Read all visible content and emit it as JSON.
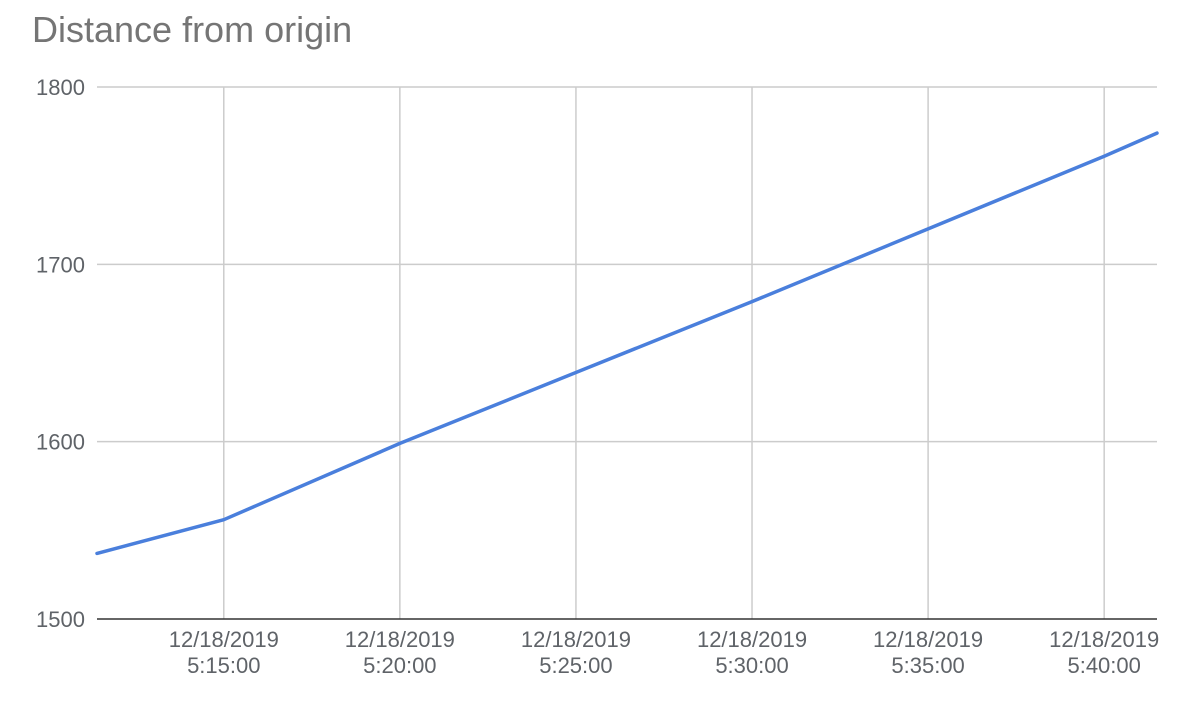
{
  "chart_data": {
    "type": "line",
    "title": "Distance from origin",
    "xlabel": "",
    "ylabel": "",
    "ylim": [
      1500,
      1800
    ],
    "xlim": [
      "12/18/2019 5:11:24",
      "12/18/2019 5:41:30"
    ],
    "y_ticks": [
      1500,
      1600,
      1700,
      1800
    ],
    "x_ticks": [
      {
        "date": "12/18/2019",
        "time": "5:15:00"
      },
      {
        "date": "12/18/2019",
        "time": "5:20:00"
      },
      {
        "date": "12/18/2019",
        "time": "5:25:00"
      },
      {
        "date": "12/18/2019",
        "time": "5:30:00"
      },
      {
        "date": "12/18/2019",
        "time": "5:35:00"
      },
      {
        "date": "12/18/2019",
        "time": "5:40:00"
      }
    ],
    "grid": true,
    "legend": "none",
    "series": [
      {
        "color": "#4a7fdc",
        "points": [
          {
            "x": "12/18/2019 5:11:24",
            "y": 1537
          },
          {
            "x": "12/18/2019 5:15:00",
            "y": 1556
          },
          {
            "x": "12/18/2019 5:20:00",
            "y": 1599
          },
          {
            "x": "12/18/2019 5:25:00",
            "y": 1639
          },
          {
            "x": "12/18/2019 5:30:00",
            "y": 1679
          },
          {
            "x": "12/18/2019 5:35:00",
            "y": 1720
          },
          {
            "x": "12/18/2019 5:40:00",
            "y": 1761
          },
          {
            "x": "12/18/2019 5:41:30",
            "y": 1774
          }
        ]
      }
    ]
  }
}
